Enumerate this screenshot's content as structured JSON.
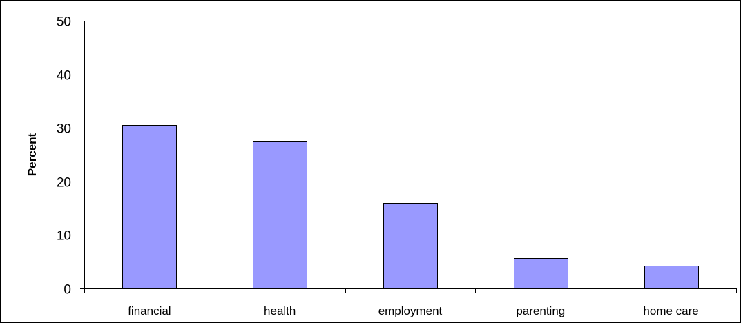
{
  "chart_data": {
    "type": "bar",
    "categories": [
      "financial",
      "health",
      "employment",
      "parenting",
      "home care"
    ],
    "values": [
      30.5,
      27.5,
      16,
      5.7,
      4.3
    ],
    "title": "",
    "xlabel": "",
    "ylabel": "Percent",
    "ylim": [
      0,
      50
    ],
    "yticks": [
      "0",
      "10",
      "20",
      "30",
      "40",
      "50"
    ],
    "grid": true,
    "bar_color": "#9999ff",
    "bar_edge_color": "#000000",
    "legend": false
  }
}
